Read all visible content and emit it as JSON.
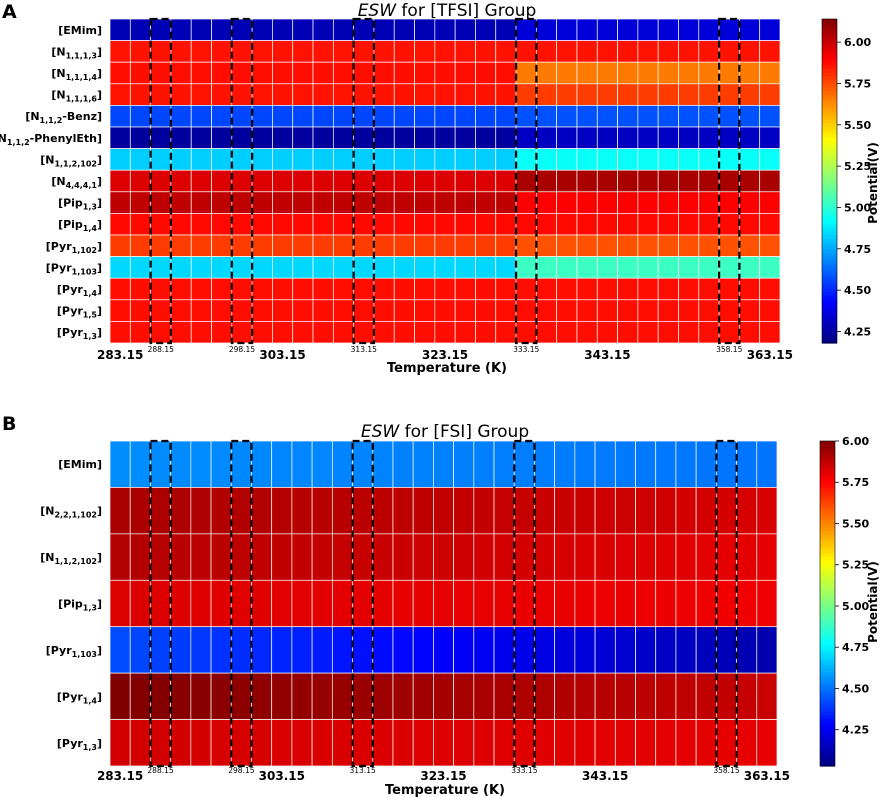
{
  "chart_data": [
    {
      "type": "heatmap",
      "panel_label": "A",
      "title_italic": "ESW",
      "title_rest": " for [TFSI] Group",
      "xlabel": "Temperature (K)",
      "ylabel": "",
      "colorbar_label": "Potential(V)",
      "colorbar_ticks": [
        "4.25",
        "4.50",
        "4.75",
        "5.00",
        "5.25",
        "5.50",
        "5.75",
        "6.00"
      ],
      "colorbar_range": [
        4.18,
        6.14
      ],
      "x": [
        283.15,
        285.65,
        288.15,
        290.65,
        293.15,
        295.65,
        298.15,
        300.65,
        303.15,
        305.65,
        308.15,
        310.65,
        313.15,
        315.65,
        318.15,
        320.65,
        323.15,
        325.65,
        328.15,
        330.65,
        333.15,
        335.65,
        338.15,
        340.65,
        343.15,
        345.65,
        348.15,
        350.65,
        353.15,
        355.65,
        358.15,
        360.65,
        363.15
      ],
      "major_xticks": [
        {
          "label": "283.15",
          "index": 0
        },
        {
          "label": "303.15",
          "index": 8
        },
        {
          "label": "323.15",
          "index": 16
        },
        {
          "label": "343.15",
          "index": 24
        },
        {
          "label": "363.15",
          "index": 32
        }
      ],
      "minor_xticks": [
        {
          "label": "288.15",
          "index": 2
        },
        {
          "label": "298.15",
          "index": 6
        },
        {
          "label": "313.15",
          "index": 12
        },
        {
          "label": "333.15",
          "index": 20
        },
        {
          "label": "358.15",
          "index": 30
        }
      ],
      "highlight_columns": [
        2,
        6,
        12,
        20,
        30
      ],
      "rows": [
        {
          "name": "EMim",
          "sub": "",
          "label": "[EMim]",
          "segments": [
            {
              "until": 20,
              "value": 4.28
            },
            {
              "until": 33,
              "value": 4.35
            }
          ]
        },
        {
          "name": "N",
          "sub": "1,1,1,3",
          "label": "[N₁,₁,₁,₃]",
          "segments": [
            {
              "until": 20,
              "value": 5.86
            },
            {
              "until": 33,
              "value": 5.86
            }
          ]
        },
        {
          "name": "N",
          "sub": "1,1,1,4",
          "label": "[N₁,₁,₁,₄]",
          "segments": [
            {
              "until": 20,
              "value": 5.87
            },
            {
              "until": 33,
              "value": 5.66
            }
          ]
        },
        {
          "name": "N",
          "sub": "1,1,1,6",
          "label": "[N₁,₁,₁,₆]",
          "segments": [
            {
              "until": 20,
              "value": 5.86
            },
            {
              "until": 33,
              "value": 5.78
            }
          ]
        },
        {
          "name": "N",
          "sub": "1,1,2",
          "sub_suffix": "-Benz",
          "label": "[N₁,₁,₂-Benz]",
          "segments": [
            {
              "until": 20,
              "value": 4.56
            },
            {
              "until": 33,
              "value": 4.58
            }
          ]
        },
        {
          "name": "N",
          "sub": "1,1,2",
          "sub_suffix": "-PhenylEth",
          "label": "[N₁,₁,₂-PhenylEth]",
          "segments": [
            {
              "until": 20,
              "value": 4.24
            },
            {
              "until": 33,
              "value": 4.31
            }
          ]
        },
        {
          "name": "N",
          "sub": "1,1,2,102",
          "label": "[N₁,₁,₂,₁₀₂]",
          "segments": [
            {
              "until": 20,
              "value": 4.82
            },
            {
              "until": 33,
              "value": 4.93
            }
          ]
        },
        {
          "name": "N",
          "sub": "4,4,4,1",
          "label": "[N₄,₄,₄,₁]",
          "segments": [
            {
              "until": 20,
              "value": 5.96
            },
            {
              "until": 33,
              "value": 6.06
            }
          ]
        },
        {
          "name": "Pip",
          "sub": "1,3",
          "label": "[Pip₁,₃]",
          "segments": [
            {
              "until": 20,
              "value": 6.02
            },
            {
              "until": 33,
              "value": 5.9
            }
          ]
        },
        {
          "name": "Pip",
          "sub": "1,4",
          "label": "[Pip₁,₄]",
          "segments": [
            {
              "until": 20,
              "value": 5.88
            },
            {
              "until": 33,
              "value": 5.88
            }
          ]
        },
        {
          "name": "Pyr",
          "sub": "1,102",
          "label": "[Pyr₁,₁₀₂]",
          "segments": [
            {
              "until": 20,
              "value": 5.78
            },
            {
              "until": 33,
              "value": 5.74
            }
          ]
        },
        {
          "name": "Pyr",
          "sub": "1,103",
          "label": "[Pyr₁,₁₀₃]",
          "segments": [
            {
              "until": 20,
              "value": 4.84
            },
            {
              "until": 33,
              "value": 5.03
            }
          ]
        },
        {
          "name": "Pyr",
          "sub": "1,4",
          "label": "[Pyr₁,₄]",
          "segments": [
            {
              "until": 20,
              "value": 5.87
            },
            {
              "until": 33,
              "value": 5.87
            }
          ]
        },
        {
          "name": "Pyr",
          "sub": "1,5",
          "label": "[Pyr₁,₅]",
          "segments": [
            {
              "until": 20,
              "value": 5.87
            },
            {
              "until": 33,
              "value": 5.87
            }
          ]
        },
        {
          "name": "Pyr",
          "sub": "1,3",
          "label": "[Pyr₁,₃]",
          "segments": [
            {
              "until": 20,
              "value": 5.87
            },
            {
              "until": 33,
              "value": 5.87
            }
          ]
        }
      ]
    },
    {
      "type": "heatmap",
      "panel_label": "B",
      "title_italic": "ESW",
      "title_rest": " for [FSI] Group",
      "xlabel": "Temperature (K)",
      "ylabel": "",
      "colorbar_label": "Potential(V)",
      "colorbar_ticks": [
        "4.25",
        "4.50",
        "4.75",
        "5.00",
        "5.25",
        "5.50",
        "5.75",
        "6.00"
      ],
      "colorbar_range": [
        4.03,
        6.0
      ],
      "x": [
        283.15,
        285.65,
        288.15,
        290.65,
        293.15,
        295.65,
        298.15,
        300.65,
        303.15,
        305.65,
        308.15,
        310.65,
        313.15,
        315.65,
        318.15,
        320.65,
        323.15,
        325.65,
        328.15,
        330.65,
        333.15,
        335.65,
        338.15,
        340.65,
        343.15,
        345.65,
        348.15,
        350.65,
        353.15,
        355.65,
        358.15,
        360.65,
        363.15
      ],
      "major_xticks": [
        {
          "label": "283.15",
          "index": 0
        },
        {
          "label": "303.15",
          "index": 8
        },
        {
          "label": "323.15",
          "index": 16
        },
        {
          "label": "343.15",
          "index": 24
        },
        {
          "label": "363.15",
          "index": 32
        }
      ],
      "minor_xticks": [
        {
          "label": "288.15",
          "index": 2
        },
        {
          "label": "298.15",
          "index": 6
        },
        {
          "label": "313.15",
          "index": 12
        },
        {
          "label": "333.15",
          "index": 20
        },
        {
          "label": "358.15",
          "index": 30
        }
      ],
      "highlight_columns": [
        2,
        6,
        12,
        20,
        30
      ],
      "rows": [
        {
          "name": "EMim",
          "sub": "",
          "label": "[EMim]",
          "start": 4.55,
          "end": 4.5
        },
        {
          "name": "N",
          "sub": "2,2,1,102",
          "label": "[N₂,₂,₁,₁₀₂]",
          "start": 5.92,
          "end": 5.83
        },
        {
          "name": "N",
          "sub": "1,1,2,102",
          "label": "[N₁,₁,₂,₁₀₂]",
          "start": 5.9,
          "end": 5.8
        },
        {
          "name": "Pip",
          "sub": "1,3",
          "label": "[Pip₁,₃]",
          "start": 5.82,
          "end": 5.78
        },
        {
          "name": "Pyr",
          "sub": "1,103",
          "label": "[Pyr₁,₁₀₃]",
          "start": 4.42,
          "end": 4.12
        },
        {
          "name": "Pyr",
          "sub": "1,4",
          "label": "[Pyr₁,₄]",
          "start": 6.0,
          "end": 5.86
        },
        {
          "name": "Pyr",
          "sub": "1,3",
          "label": "[Pyr₁,₃]",
          "start": 5.84,
          "end": 5.8
        }
      ]
    }
  ]
}
